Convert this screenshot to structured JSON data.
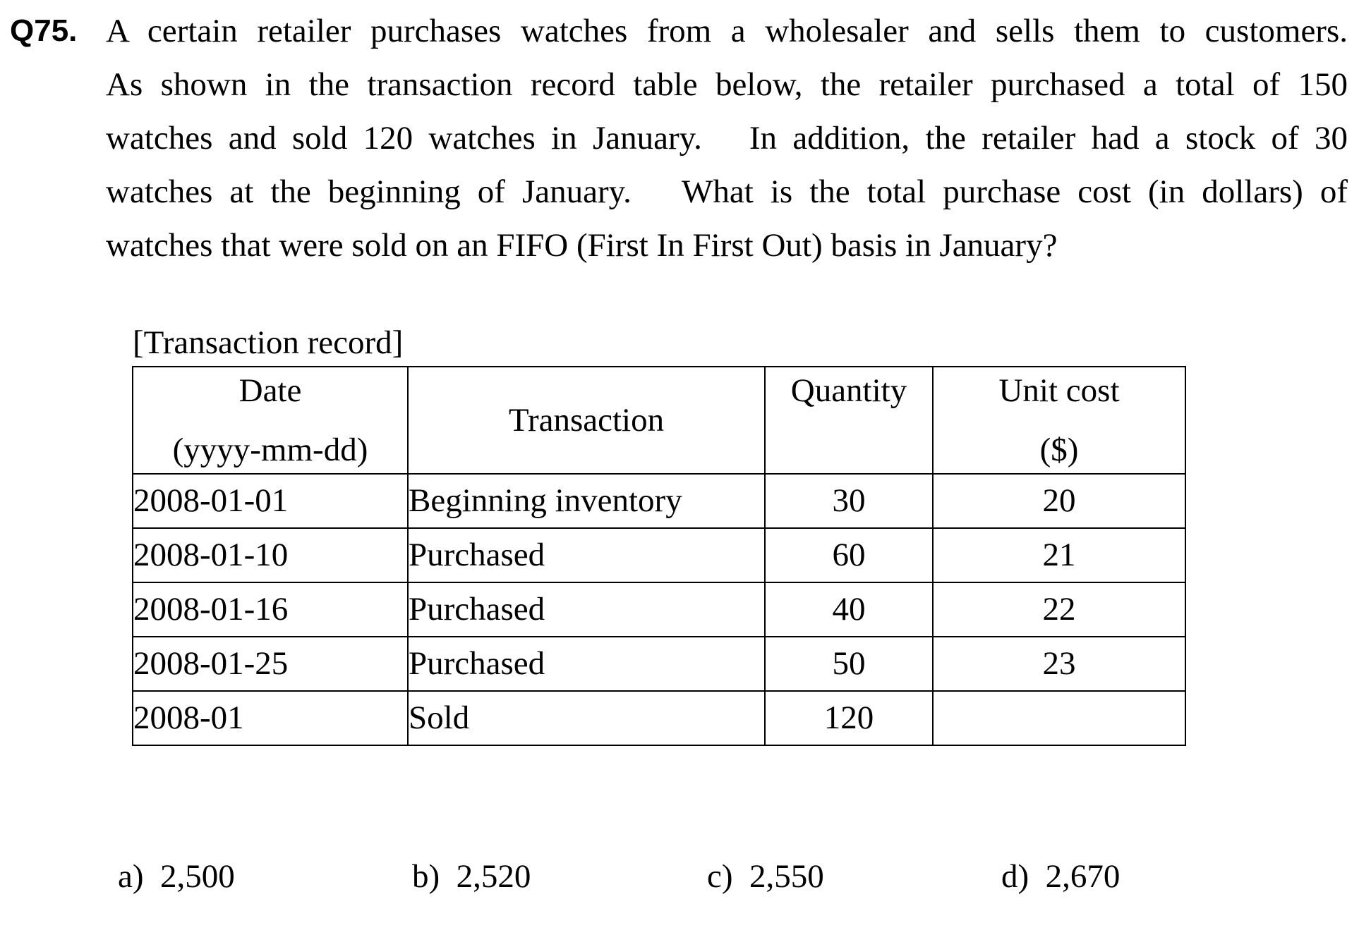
{
  "question": {
    "number": "Q75.",
    "lines": [
      "A certain retailer purchases watches from a wholesaler and sells them to customers.",
      "As shown in the transaction record table below, the retailer purchased a total of 150",
      "watches and sold 120 watches in January.   In addition, the retailer had a stock of 30",
      "watches at the beginning of January.   What is the total purchase cost (in dollars) of",
      "watches that were sold on an FIFO (First In First Out) basis in January?"
    ]
  },
  "table": {
    "caption": "[Transaction record]",
    "headers": {
      "date_line1": "Date",
      "date_line2": "(yyyy-mm-dd)",
      "transaction": "Transaction",
      "quantity": "Quantity",
      "unit_cost_line1": "Unit cost",
      "unit_cost_line2": "($)"
    },
    "rows": [
      {
        "date": "2008-01-01",
        "transaction": "Beginning inventory",
        "quantity": "30",
        "unit_cost": "20"
      },
      {
        "date": "2008-01-10",
        "transaction": "Purchased",
        "quantity": "60",
        "unit_cost": "21"
      },
      {
        "date": "2008-01-16",
        "transaction": "Purchased",
        "quantity": "40",
        "unit_cost": "22"
      },
      {
        "date": "2008-01-25",
        "transaction": "Purchased",
        "quantity": "50",
        "unit_cost": "23"
      },
      {
        "date": "2008-01",
        "transaction": "Sold",
        "quantity": "120",
        "unit_cost": ""
      }
    ]
  },
  "choices": [
    {
      "label": "a)",
      "value": "2,500"
    },
    {
      "label": "b)",
      "value": "2,520"
    },
    {
      "label": "c)",
      "value": "2,550"
    },
    {
      "label": "d)",
      "value": "2,670"
    }
  ]
}
